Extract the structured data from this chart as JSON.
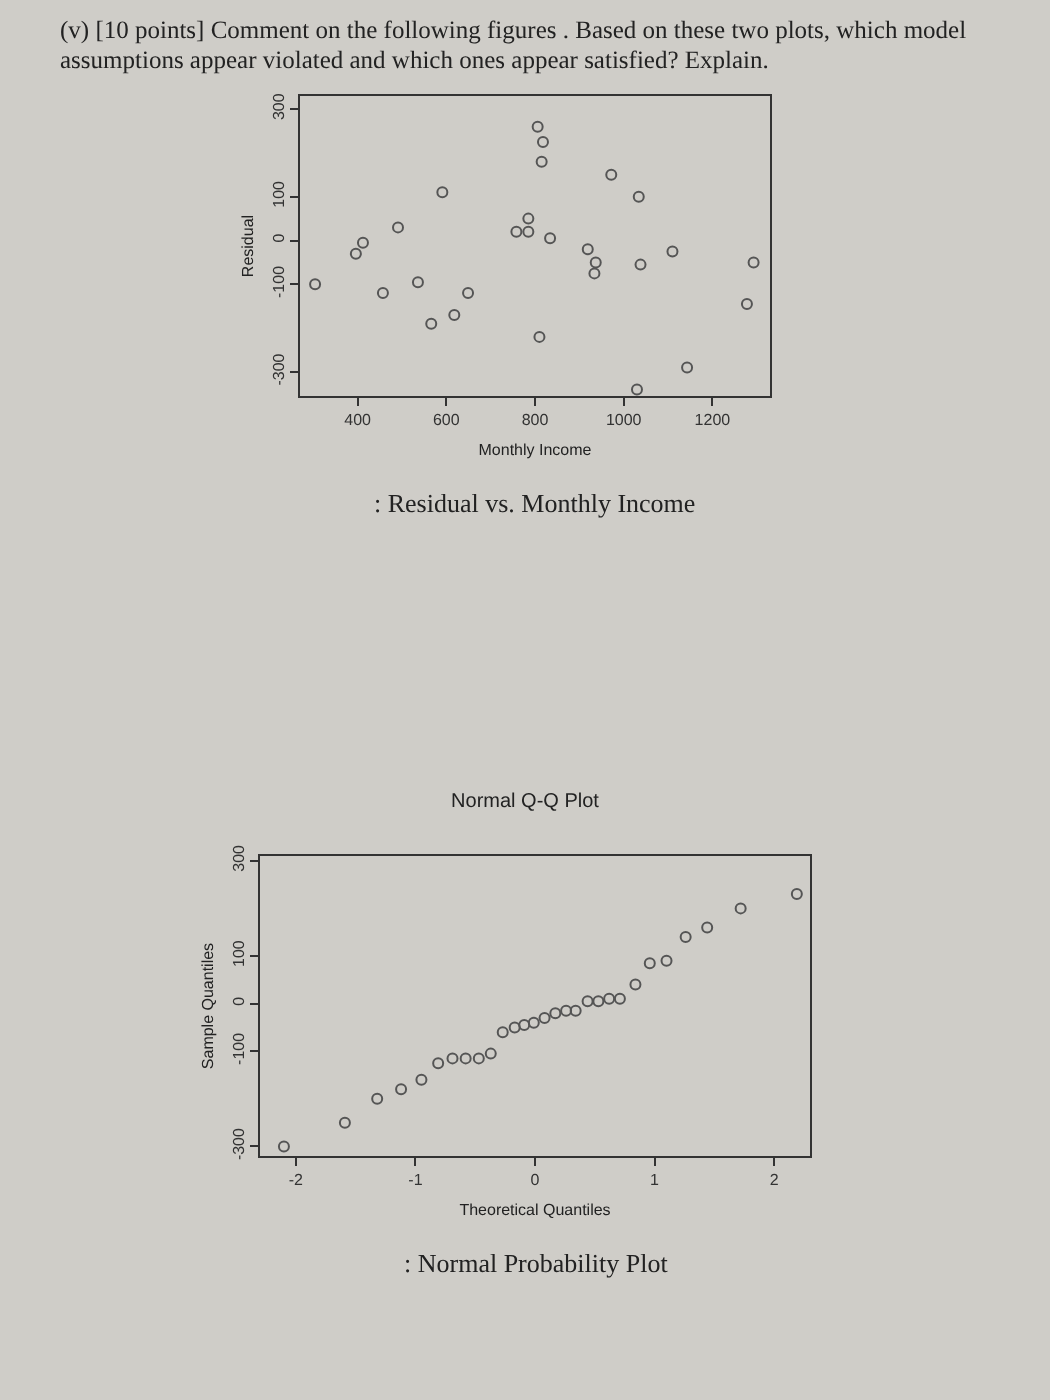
{
  "chart_data": [
    {
      "type": "scatter",
      "title": "(v) [10 points] Comment on the following figures . Based on these two plots, which model assumptions appear violated and which ones appear satisfied? Explain.",
      "xlabel": "Monthly Income",
      "ylabel": "Residual",
      "annotations": [
        ": Residual vs. Monthly Income"
      ],
      "marker": "circle",
      "grid": false,
      "x": [
        304,
        396,
        412,
        457,
        491,
        536,
        566,
        591,
        618,
        649,
        758,
        785,
        785,
        806,
        818,
        815,
        810,
        834,
        919,
        937,
        934,
        972,
        1034,
        1038,
        1030,
        1110,
        1143,
        1278,
        1293
      ],
      "series": [
        {
          "color": "#555555",
          "values": [
            -100,
            -30,
            -5,
            -120,
            30,
            -95,
            -190,
            110,
            -170,
            -120,
            20,
            20,
            50,
            260,
            225,
            180,
            -220,
            5,
            -20,
            -50,
            -75,
            150,
            100,
            -55,
            -340,
            -25,
            -290,
            -145,
            -50
          ]
        }
      ],
      "xlim": [
        270,
        1330
      ],
      "xticks": [
        400,
        600,
        800,
        1000,
        1200
      ],
      "ylim": [
        -355,
        330
      ],
      "yticks": [
        -300,
        -100,
        0,
        100,
        300
      ]
    },
    {
      "type": "scatter",
      "title": "Normal Q-Q Plot",
      "xlabel": "Theoretical Quantiles",
      "ylabel": "Sample Quantiles",
      "annotations": [
        ": Normal Probability Plot"
      ],
      "marker": "circle",
      "grid": false,
      "x": [
        -2.1,
        -1.59,
        -1.32,
        -1.12,
        -0.95,
        -0.81,
        -0.69,
        -0.58,
        -0.47,
        -0.37,
        -0.27,
        -0.17,
        -0.09,
        -0.01,
        0.08,
        0.17,
        0.26,
        0.34,
        0.44,
        0.53,
        0.62,
        0.71,
        0.84,
        0.96,
        1.1,
        1.26,
        1.44,
        1.72,
        2.19
      ],
      "series": [
        {
          "color": "#555555",
          "values": [
            -300,
            -250,
            -200,
            -180,
            -160,
            -125,
            -115,
            -115,
            -115,
            -105,
            -60,
            -50,
            -45,
            -40,
            -30,
            -20,
            -15,
            -15,
            5,
            5,
            10,
            10,
            40,
            85,
            90,
            140,
            160,
            200,
            230
          ]
        }
      ],
      "xlim": [
        -2.3,
        2.3
      ],
      "xticks": [
        -2,
        -1,
        0,
        1,
        2
      ],
      "ylim": [
        -320,
        310
      ],
      "yticks": [
        -300,
        -100,
        0,
        100,
        300
      ]
    }
  ]
}
